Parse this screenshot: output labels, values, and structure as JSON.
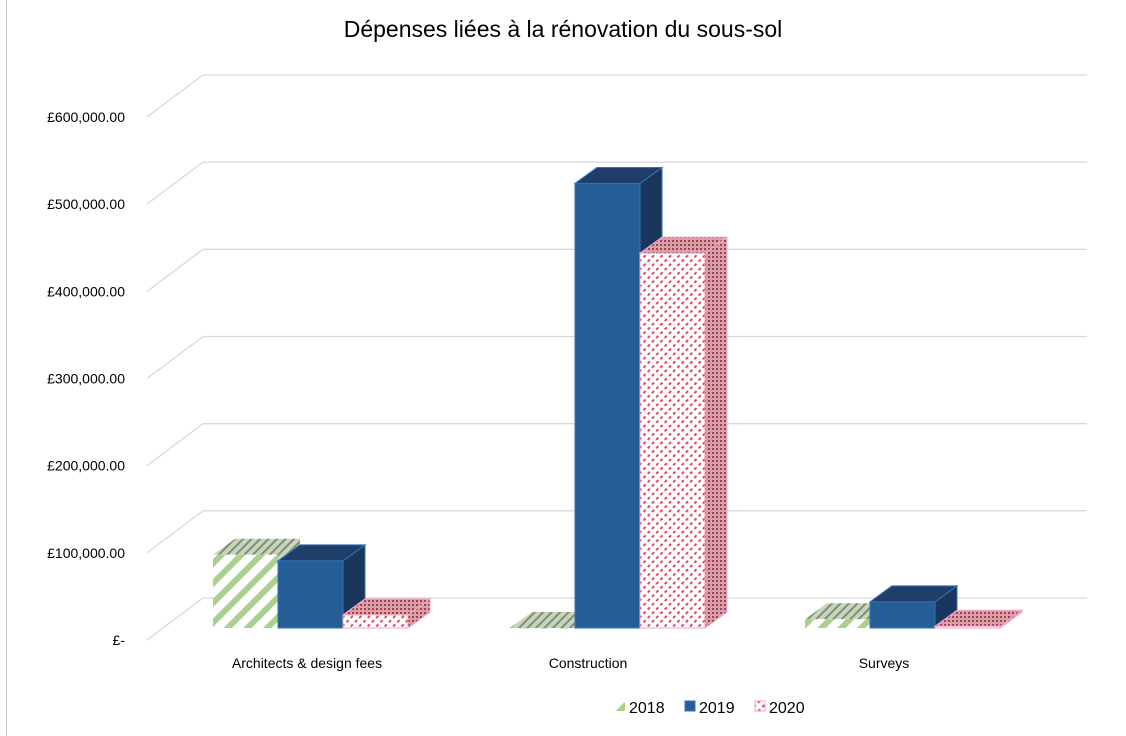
{
  "chart_data": {
    "type": "bar",
    "variant": "3d-clustered-column",
    "title": "Dépenses liées à la rénovation du sous-sol",
    "xlabel": "",
    "ylabel": "",
    "ylim": [
      0,
      600000
    ],
    "yticks": [
      0,
      100000,
      200000,
      300000,
      400000,
      500000,
      600000
    ],
    "ytick_labels": [
      "£-",
      "£100,000.00",
      "£200,000.00",
      "£300,000.00",
      "£400,000.00",
      "£500,000.00",
      "£600,000.00"
    ],
    "categories": [
      "Architects & design fees",
      "Construction",
      "Surveys"
    ],
    "series": [
      {
        "name": "2018",
        "values": [
          84000,
          0,
          10000
        ],
        "color": "#a9d08e",
        "pattern": "diagonal-stripes"
      },
      {
        "name": "2019",
        "values": [
          77000,
          510000,
          30000
        ],
        "color": "#255e96",
        "pattern": "solid"
      },
      {
        "name": "2020",
        "values": [
          15000,
          430000,
          2000
        ],
        "color": "#e05a78",
        "pattern": "dotted"
      }
    ],
    "legend": "bottom-right",
    "grid": true
  }
}
